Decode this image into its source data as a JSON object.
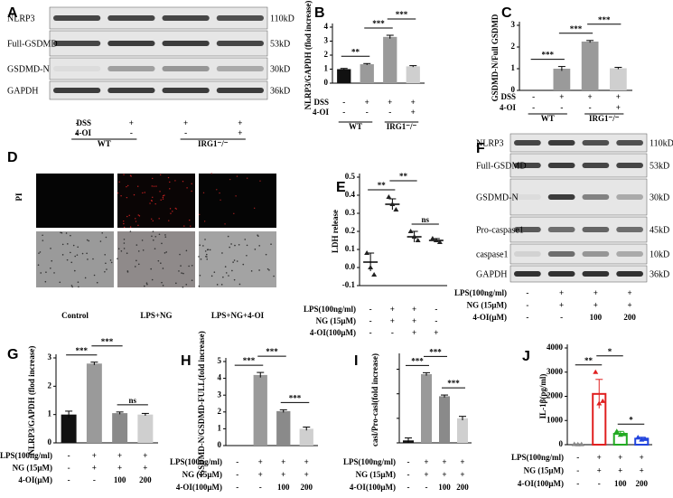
{
  "blots": [
    {
      "letter": "A",
      "proteins": [
        "NLRP3",
        "Full-GSDMD",
        "GSDMD-N",
        "GAPDH"
      ],
      "sizes": [
        "110kD",
        "53kD",
        "30kD",
        "36kD"
      ],
      "rows": [
        {
          "label": "DSS",
          "values": [
            "-",
            "+",
            "+",
            "+"
          ]
        },
        {
          "label": "4-OI",
          "values": [
            "-",
            "-",
            "-",
            "+"
          ]
        }
      ],
      "groups": [
        {
          "label": "WT",
          "from": 0,
          "to": 1
        },
        {
          "label": "IRG1⁻/⁻",
          "from": 2,
          "to": 3
        }
      ]
    },
    {
      "letter": "F",
      "proteins": [
        "NLRP3",
        "Full-GSDMD",
        "GSDMD-N",
        "Pro-caspase1",
        "caspase1",
        "GAPDH"
      ],
      "sizes": [
        "110kD",
        "53kD",
        "30kD",
        "45kD",
        "10kD",
        "36kD"
      ],
      "rows": [
        {
          "label": "LPS(100ng/ml)",
          "values": [
            "-",
            "+",
            "+",
            "+"
          ]
        },
        {
          "label": "NG (15μM)",
          "values": [
            "-",
            "+",
            "+",
            "+"
          ]
        },
        {
          "label": "4-OI(μM)",
          "values": [
            "-",
            "-",
            "100",
            "200"
          ]
        }
      ]
    }
  ],
  "images": {
    "letter": "D",
    "row_label": "PI",
    "captions": [
      "Control",
      "LPS+NG",
      "LPS+NG+4-OI"
    ]
  },
  "chart_data": [
    {
      "type": "bar",
      "letter": "B",
      "ylabel": "NLRP3/GAPDH (flod increase)",
      "values": [
        1,
        1.35,
        3.3,
        1.2
      ],
      "errors": [
        0.05,
        0.05,
        0.12,
        0.05
      ],
      "colors": [
        "#111111",
        "#9a9a9a",
        "#9a9a9a",
        "#cfcfcf"
      ],
      "ylim": [
        0,
        4
      ],
      "yticks": [
        0,
        1,
        2,
        3,
        4
      ],
      "rows": [
        {
          "label": "DSS",
          "values": [
            "-",
            "+",
            "+",
            "+"
          ]
        },
        {
          "label": "4-OI",
          "values": [
            "-",
            "-",
            "-",
            "+"
          ]
        }
      ],
      "groups": [
        {
          "label": "WT",
          "from": 0,
          "to": 1
        },
        {
          "label": "IRG1⁻/⁻",
          "from": 2,
          "to": 3
        }
      ],
      "annotations": [
        {
          "text": "**",
          "from": 0,
          "to": 1
        },
        {
          "text": "***",
          "from": 1,
          "to": 2
        },
        {
          "text": "***",
          "from": 2,
          "to": 3
        }
      ]
    },
    {
      "type": "bar",
      "letter": "C",
      "ylabel": "GSDMD-N/Full GSDMD",
      "values": [
        0,
        1,
        2.25,
        1.02
      ],
      "errors": [
        0,
        0.1,
        0.05,
        0.04
      ],
      "colors": [
        "#111111",
        "#9a9a9a",
        "#9a9a9a",
        "#cfcfcf"
      ],
      "ylim": [
        0,
        3
      ],
      "yticks": [
        0,
        1,
        2,
        3
      ],
      "rows": [
        {
          "label": "DSS",
          "values": [
            "-",
            "+",
            "+",
            "+"
          ]
        },
        {
          "label": "4-OI",
          "values": [
            "-",
            "-",
            "-",
            "+"
          ]
        }
      ],
      "groups": [
        {
          "label": "WT",
          "from": 0,
          "to": 1
        },
        {
          "label": "IRG1⁻/⁻",
          "from": 2,
          "to": 3
        }
      ],
      "annotations": [
        {
          "text": "***",
          "from": 0,
          "to": 1
        },
        {
          "text": "***",
          "from": 1,
          "to": 2
        },
        {
          "text": "***",
          "from": 2,
          "to": 3
        }
      ]
    },
    {
      "type": "dot",
      "letter": "E",
      "ylabel": "LDH release",
      "values": [
        0.03,
        0.35,
        0.17,
        0.15
      ],
      "errors": [
        0.05,
        0.03,
        0.03,
        0.01
      ],
      "points": [
        [
          0.08,
          0.0,
          -0.04
        ],
        [
          0.39,
          0.35,
          0.32
        ],
        [
          0.2,
          0.17,
          0.15
        ],
        [
          0.16,
          0.15,
          0.14
        ]
      ],
      "ylim": [
        -0.1,
        0.5
      ],
      "yticks": [
        {
          "value": -0.1,
          "label": "-0.1"
        },
        {
          "value": 0,
          "label": "0.0"
        },
        0.1,
        0.2,
        0.3,
        0.4,
        0.5
      ],
      "rows": [
        {
          "label": "LPS(100ng/ml)",
          "values": [
            "-",
            "+",
            "+",
            "-"
          ]
        },
        {
          "label": "NG (15μM)",
          "values": [
            "-",
            "+",
            "+",
            "-"
          ]
        },
        {
          "label": "4-OI(100μM)",
          "values": [
            "-",
            "-",
            "+",
            "+"
          ]
        }
      ],
      "annotations": [
        {
          "text": "**",
          "from": 0,
          "to": 1
        },
        {
          "text": "**",
          "from": 1,
          "to": 2
        },
        {
          "text": "ns",
          "from": 2,
          "to": 3
        }
      ]
    },
    {
      "type": "bar",
      "letter": "G",
      "ylabel": "NLRP3/GAPDH (flod increase)",
      "values": [
        1,
        2.8,
        1.05,
        1.0
      ],
      "errors": [
        0.12,
        0.05,
        0.04,
        0.04
      ],
      "colors": [
        "#111111",
        "#9a9a9a",
        "#8a8a8a",
        "#cfcfcf"
      ],
      "ylim": [
        0,
        3
      ],
      "yticks": [
        0,
        1,
        2,
        3
      ],
      "rows": [
        {
          "label": "LPS(100ng/ml)",
          "values": [
            "-",
            "+",
            "+",
            "+"
          ]
        },
        {
          "label": "NG (15μM)",
          "values": [
            "-",
            "+",
            "+",
            "+"
          ]
        },
        {
          "label": "4-OI(μM)",
          "values": [
            "-",
            "-",
            "100",
            "200"
          ]
        }
      ],
      "annotations": [
        {
          "text": "***",
          "from": 0,
          "to": 1
        },
        {
          "text": "***",
          "from": 1,
          "to": 2
        },
        {
          "text": "ns",
          "from": 2,
          "to": 3
        }
      ]
    },
    {
      "type": "bar",
      "letter": "H",
      "ylabel": "GSDMD-N/GSDMD-FULL(fold increase)",
      "values": [
        0,
        4.2,
        2.05,
        1.0
      ],
      "errors": [
        0,
        0.15,
        0.08,
        0.1
      ],
      "colors": [
        "#111111",
        "#9a9a9a",
        "#8a8a8a",
        "#cfcfcf"
      ],
      "ylim": [
        0,
        5
      ],
      "yticks": [
        0,
        1,
        2,
        3,
        4,
        5
      ],
      "rows": [
        {
          "label": "LPS(100ng/ml)",
          "values": [
            "-",
            "+",
            "+",
            "+"
          ]
        },
        {
          "label": "NG (15μM)",
          "values": [
            "-",
            "+",
            "+",
            "+"
          ]
        },
        {
          "label": "4-OI(100μM)",
          "values": [
            "-",
            "-",
            "100",
            "200"
          ]
        }
      ],
      "annotations": [
        {
          "text": "***",
          "from": 0,
          "to": 1
        },
        {
          "text": "***",
          "from": 1,
          "to": 2
        },
        {
          "text": "***",
          "from": 2,
          "to": 3
        }
      ]
    },
    {
      "type": "bar",
      "letter": "I",
      "ylabel": "casl/Pro-casl(fold increase)",
      "values": [
        0.1,
        2.8,
        1.9,
        1.0
      ],
      "errors": [
        0.1,
        0.06,
        0.05,
        0.08
      ],
      "colors": [
        "#111111",
        "#9a9a9a",
        "#8a8a8a",
        "#cfcfcf"
      ],
      "ylim": [
        0,
        3.5
      ],
      "yticks": [
        0,
        1,
        2,
        3
      ],
      "hide_tick_labels": true,
      "rows": [
        {
          "label": "LPS(100ng/ml)",
          "values": [
            "-",
            "+",
            "+",
            "+"
          ]
        },
        {
          "label": "NG (15μM)",
          "values": [
            "-",
            "+",
            "+",
            "+"
          ]
        },
        {
          "label": "4-OI(100μM)",
          "values": [
            "-",
            "-",
            "100",
            "200"
          ]
        }
      ],
      "annotations": [
        {
          "text": "***",
          "from": 0,
          "to": 1
        },
        {
          "text": "***",
          "from": 1,
          "to": 2
        },
        {
          "text": "***",
          "from": 2,
          "to": 3
        }
      ]
    },
    {
      "type": "bar",
      "letter": "J",
      "ylabel": "IL-1β(pg/ml)",
      "values": [
        0,
        2100,
        450,
        250
      ],
      "errors": [
        30,
        600,
        100,
        60
      ],
      "hollow": true,
      "points": [
        [
          20,
          10,
          15
        ],
        [
          3000,
          1700,
          1800
        ],
        [
          550,
          400,
          430
        ],
        [
          300,
          200,
          230
        ]
      ],
      "colors": [
        "#888888",
        "#e02020",
        "#22aa22",
        "#2244dd"
      ],
      "ylim": [
        0,
        4000
      ],
      "yticks": [
        0,
        1000,
        2000,
        3000,
        4000
      ],
      "rows": [
        {
          "label": "LPS(100ng/ml)",
          "values": [
            "-",
            "+",
            "+",
            "+"
          ]
        },
        {
          "label": "NG (15μM)",
          "values": [
            "-",
            "+",
            "+",
            "+"
          ]
        },
        {
          "label": "4-OI(100μM)",
          "values": [
            "-",
            "-",
            "100",
            "200"
          ]
        }
      ],
      "annotations": [
        {
          "text": "**",
          "from": 0,
          "to": 1
        },
        {
          "text": "*",
          "from": 1,
          "to": 2
        },
        {
          "text": "*",
          "from": 2,
          "to": 3
        }
      ]
    }
  ]
}
